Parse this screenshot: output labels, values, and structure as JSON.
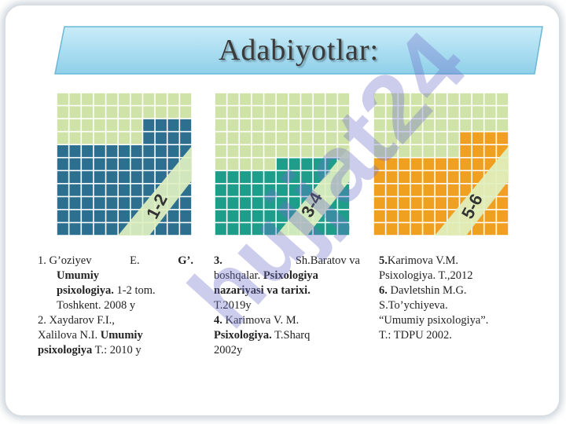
{
  "title": "Adabiyotlar:",
  "panels": [
    {
      "label": "1-2",
      "color": "#2d6f8f"
    },
    {
      "label": "3-4",
      "color": "#1e9e8a"
    },
    {
      "label": "5-6",
      "color": "#f0a020"
    }
  ],
  "col1": {
    "r1": {
      "num": "1.",
      "a": "G’oziyev",
      "b": "E.",
      "c": "G’.",
      "d": "Umumiy",
      "e": "psixologiya.",
      "f": "1-2 tom.",
      "g": "Toshkent. 2008 y"
    },
    "r2": {
      "a": "2. Xaydarov F.I.,",
      "b": "Xalilova N.I.",
      "c": "Umumiy",
      "d": "psixologiya",
      "e": "T.: 2010 y"
    }
  },
  "col2": {
    "r3": {
      "num": "3.",
      "a": "Sh.Baratov va",
      "b": "boshqalar.",
      "c": "Psixologiya",
      "d": "nazariyasi va tarixi.",
      "e": "T.2019y"
    },
    "r4": {
      "num": "4.",
      "a": "Karimova V. M.",
      "b": "Psixologiya.",
      "c": "T.Sharq",
      "d": "2002y"
    }
  },
  "col3": {
    "r5": {
      "num": "5.",
      "a": "Karimova V.M.",
      "b": "Psixologiya. T.,2012"
    },
    "r6": {
      "num": "6.",
      "a": "Davletshin M.G.",
      "b": "S.To’ychiyeva.",
      "c": "“Umumiy psixologiya”.",
      "d": "T.: TDPU 2002."
    }
  },
  "watermark": "hujjat24",
  "colors": {
    "banner": "#a8dcef",
    "grid": "#cfe3a8"
  }
}
